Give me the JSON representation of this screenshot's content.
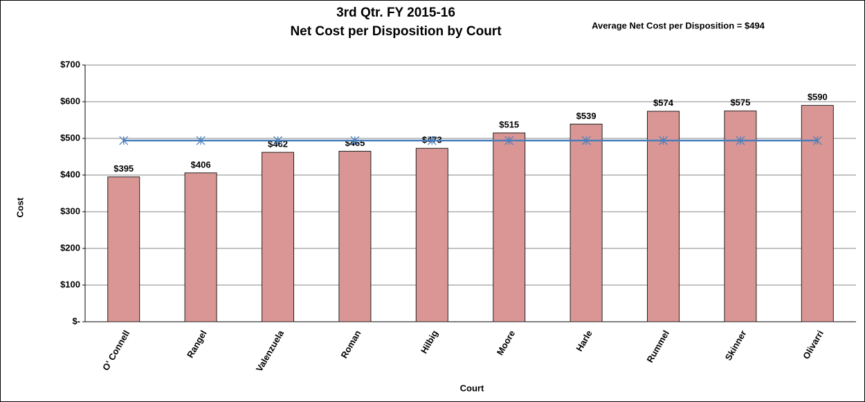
{
  "chart_data": {
    "type": "bar",
    "title": [
      "3rd Qtr. FY 2015-16",
      "Net Cost per Disposition by Court"
    ],
    "annotation": "Average Net Cost per Disposition = $494",
    "xlabel": "Court",
    "ylabel": "Cost",
    "categories": [
      "O' Connell",
      "Rangel",
      "Valenzuela",
      "Roman",
      "Hilbig",
      "Moore",
      "Harle",
      "Rummel",
      "Skinner",
      "Olivarri"
    ],
    "values": [
      395,
      406,
      462,
      465,
      473,
      515,
      539,
      574,
      575,
      590
    ],
    "value_labels": [
      "$395",
      "$406",
      "$462",
      "$465",
      "$473",
      "$515",
      "$539",
      "$574",
      "$575",
      "$590"
    ],
    "color": "#d99694",
    "average_line": {
      "values": [
        494,
        494,
        494,
        494,
        494,
        494,
        494,
        494,
        494,
        494
      ],
      "color": "#4a7ebb"
    },
    "ylim": [
      0,
      700
    ],
    "yticks": [
      {
        "value": 0,
        "label": "$-"
      },
      {
        "value": 100,
        "label": "$100"
      },
      {
        "value": 200,
        "label": "$200"
      },
      {
        "value": 300,
        "label": "$300"
      },
      {
        "value": 400,
        "label": "$400"
      },
      {
        "value": 500,
        "label": "$500"
      },
      {
        "value": 600,
        "label": "$600"
      },
      {
        "value": 700,
        "label": "$700"
      }
    ],
    "grid": true
  }
}
